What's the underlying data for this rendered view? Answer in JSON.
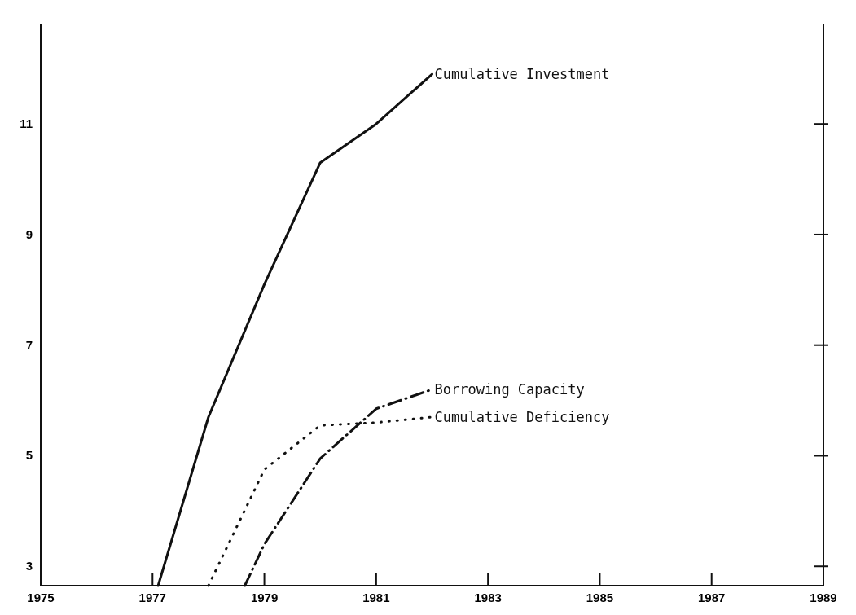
{
  "chart_data": {
    "type": "line",
    "xlim": [
      1975,
      1989
    ],
    "xticks": [
      1975,
      1977,
      1979,
      1981,
      1983,
      1985,
      1987,
      1989
    ],
    "ylim": [
      2.65,
      12.8
    ],
    "yticks": [
      3,
      5,
      7,
      9,
      11
    ],
    "grid": false,
    "series": [
      {
        "name": "Cumulative Investment",
        "color": "#111111",
        "line_style": "solid",
        "x": [
          1977.1,
          1978,
          1979,
          1980,
          1981,
          1982
        ],
        "values": [
          2.65,
          5.7,
          8.1,
          10.3,
          11.0,
          11.9
        ]
      },
      {
        "name": "Borrowing Capacity",
        "color": "#111111",
        "line_style": "dashdot",
        "x": [
          1978.65,
          1979,
          1980,
          1981,
          1982
        ],
        "values": [
          2.65,
          3.4,
          4.95,
          5.85,
          6.2
        ]
      },
      {
        "name": "Cumulative Deficiency",
        "color": "#111111",
        "line_style": "dotted",
        "x": [
          1978,
          1979,
          1980,
          1981,
          1982
        ],
        "values": [
          2.65,
          4.75,
          5.55,
          5.6,
          5.7
        ]
      }
    ]
  }
}
